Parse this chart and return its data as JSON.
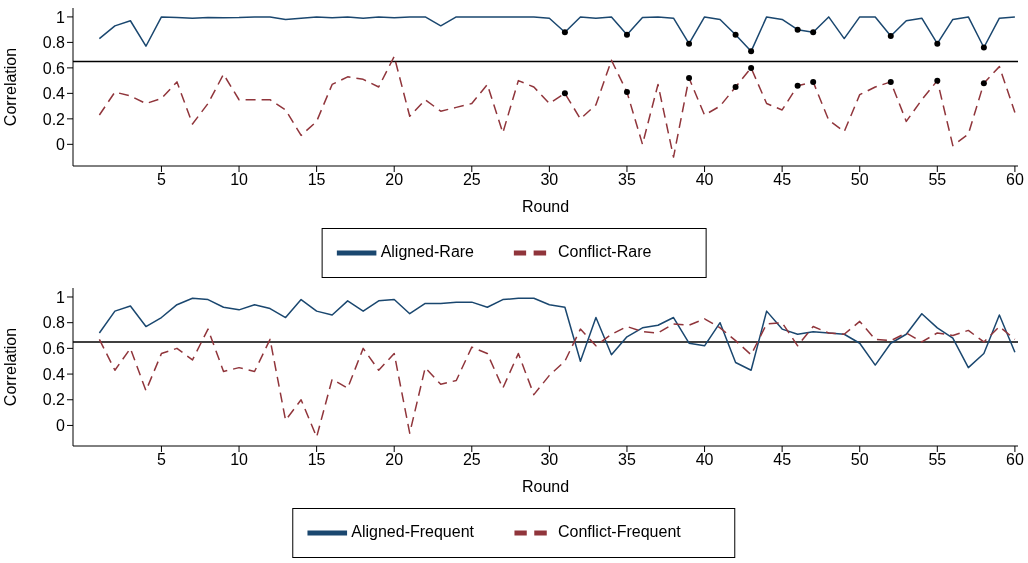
{
  "chart_data": [
    {
      "type": "line",
      "xlabel": "Round",
      "ylabel": "Correlation",
      "xlim": [
        -0.7,
        60.2
      ],
      "xticks": [
        5,
        10,
        15,
        20,
        25,
        30,
        35,
        40,
        45,
        50,
        55,
        60
      ],
      "ylim": [
        -0.17,
        1.07
      ],
      "yticks": [
        0,
        0.2,
        0.4,
        0.6,
        0.8,
        1
      ],
      "legend": "bottom",
      "marker": "none",
      "ref_lines": [
        {
          "axis": "y",
          "value": 0.65,
          "color": "#000000"
        }
      ],
      "x": [
        1,
        2,
        3,
        4,
        5,
        6,
        7,
        8,
        9,
        10,
        11,
        12,
        13,
        14,
        15,
        16,
        17,
        18,
        19,
        20,
        21,
        22,
        23,
        24,
        25,
        26,
        27,
        28,
        29,
        30,
        31,
        32,
        33,
        34,
        35,
        36,
        37,
        38,
        39,
        40,
        41,
        42,
        43,
        44,
        45,
        46,
        47,
        48,
        49,
        50,
        51,
        52,
        53,
        54,
        55,
        56,
        57,
        58,
        59,
        60
      ],
      "series": [
        {
          "name": "Aligned-Rare",
          "color": "#1a476f",
          "line_style": "solid",
          "values": [
            0.83,
            0.93,
            0.97,
            0.77,
            1.0,
            0.995,
            0.99,
            0.995,
            0.993,
            0.995,
            1.0,
            1.0,
            0.98,
            0.99,
            1.0,
            0.993,
            1.0,
            0.99,
            1.0,
            0.993,
            1.0,
            1.0,
            0.93,
            1.0,
            1.0,
            1.0,
            1.0,
            1.0,
            1.0,
            0.99,
            0.88,
            1.0,
            0.99,
            1.0,
            0.86,
            0.995,
            1.0,
            0.99,
            0.79,
            1.0,
            0.98,
            0.86,
            0.73,
            1.0,
            0.98,
            0.9,
            0.88,
            1.0,
            0.83,
            1.0,
            1.0,
            0.85,
            0.97,
            0.99,
            0.79,
            0.98,
            1.0,
            0.76,
            0.99,
            1.0
          ]
        },
        {
          "name": "Conflict-Rare",
          "color": "#90353b",
          "line_style": "dashed",
          "values": [
            0.23,
            0.41,
            0.38,
            0.32,
            0.36,
            0.49,
            0.16,
            0.32,
            0.55,
            0.35,
            0.35,
            0.35,
            0.27,
            0.07,
            0.18,
            0.47,
            0.53,
            0.51,
            0.45,
            0.69,
            0.22,
            0.35,
            0.26,
            0.29,
            0.32,
            0.47,
            0.09,
            0.5,
            0.45,
            0.32,
            0.4,
            0.2,
            0.31,
            0.66,
            0.41,
            0.0,
            0.47,
            -0.1,
            0.52,
            0.23,
            0.3,
            0.45,
            0.6,
            0.32,
            0.27,
            0.46,
            0.49,
            0.19,
            0.1,
            0.39,
            0.45,
            0.49,
            0.18,
            0.35,
            0.5,
            -0.01,
            0.08,
            0.48,
            0.61,
            0.25
          ]
        },
        {
          "type": "scatter",
          "marker": "circle",
          "color": "#000000",
          "x": [
            31,
            35,
            39,
            42,
            43,
            46,
            47,
            52,
            55,
            58
          ],
          "values": [
            0.88,
            0.86,
            0.79,
            0.86,
            0.73,
            0.9,
            0.88,
            0.85,
            0.79,
            0.76
          ]
        },
        {
          "type": "scatter",
          "marker": "circle",
          "color": "#000000",
          "x": [
            31,
            35,
            39,
            42,
            43,
            46,
            47,
            52,
            55,
            58
          ],
          "values": [
            0.4,
            0.41,
            0.52,
            0.45,
            0.6,
            0.46,
            0.49,
            0.49,
            0.5,
            0.48
          ]
        }
      ]
    },
    {
      "type": "line",
      "xlabel": "Round",
      "ylabel": "Correlation",
      "xlim": [
        -0.7,
        60.2
      ],
      "xticks": [
        5,
        10,
        15,
        20,
        25,
        30,
        35,
        40,
        45,
        50,
        55,
        60
      ],
      "ylim": [
        -0.16,
        1.07
      ],
      "yticks": [
        0,
        0.2,
        0.4,
        0.6,
        0.8,
        1
      ],
      "legend": "bottom",
      "marker": "none",
      "ref_lines": [
        {
          "axis": "y",
          "value": 0.65,
          "color": "#000000"
        }
      ],
      "x": [
        1,
        2,
        3,
        4,
        5,
        6,
        7,
        8,
        9,
        10,
        11,
        12,
        13,
        14,
        15,
        16,
        17,
        18,
        19,
        20,
        21,
        22,
        23,
        24,
        25,
        26,
        27,
        28,
        29,
        30,
        31,
        32,
        33,
        34,
        35,
        36,
        37,
        38,
        39,
        40,
        41,
        42,
        43,
        44,
        45,
        46,
        47,
        48,
        49,
        50,
        51,
        52,
        53,
        54,
        55,
        56,
        57,
        58,
        59,
        60
      ],
      "series": [
        {
          "name": "Aligned-Frequent",
          "color": "#1a476f",
          "line_style": "solid",
          "values": [
            0.72,
            0.89,
            0.93,
            0.77,
            0.84,
            0.94,
            0.99,
            0.98,
            0.92,
            0.9,
            0.94,
            0.91,
            0.84,
            0.98,
            0.89,
            0.86,
            0.97,
            0.89,
            0.97,
            0.98,
            0.87,
            0.95,
            0.95,
            0.96,
            0.96,
            0.92,
            0.98,
            0.99,
            0.99,
            0.94,
            0.92,
            0.5,
            0.84,
            0.55,
            0.69,
            0.76,
            0.78,
            0.84,
            0.64,
            0.62,
            0.8,
            0.49,
            0.43,
            0.89,
            0.75,
            0.71,
            0.73,
            0.72,
            0.71,
            0.64,
            0.47,
            0.64,
            0.71,
            0.87,
            0.76,
            0.68,
            0.45,
            0.56,
            0.86,
            0.57
          ]
        },
        {
          "name": "Conflict-Frequent",
          "color": "#90353b",
          "line_style": "dashed",
          "values": [
            0.67,
            0.43,
            0.6,
            0.27,
            0.56,
            0.6,
            0.51,
            0.75,
            0.42,
            0.45,
            0.42,
            0.67,
            0.04,
            0.2,
            -0.09,
            0.36,
            0.29,
            0.6,
            0.43,
            0.56,
            -0.06,
            0.45,
            0.32,
            0.35,
            0.61,
            0.56,
            0.29,
            0.56,
            0.24,
            0.39,
            0.5,
            0.75,
            0.62,
            0.71,
            0.77,
            0.73,
            0.72,
            0.79,
            0.78,
            0.83,
            0.76,
            0.66,
            0.55,
            0.79,
            0.8,
            0.62,
            0.77,
            0.72,
            0.71,
            0.81,
            0.67,
            0.66,
            0.72,
            0.65,
            0.72,
            0.7,
            0.74,
            0.65,
            0.77,
            0.67
          ]
        }
      ]
    }
  ]
}
